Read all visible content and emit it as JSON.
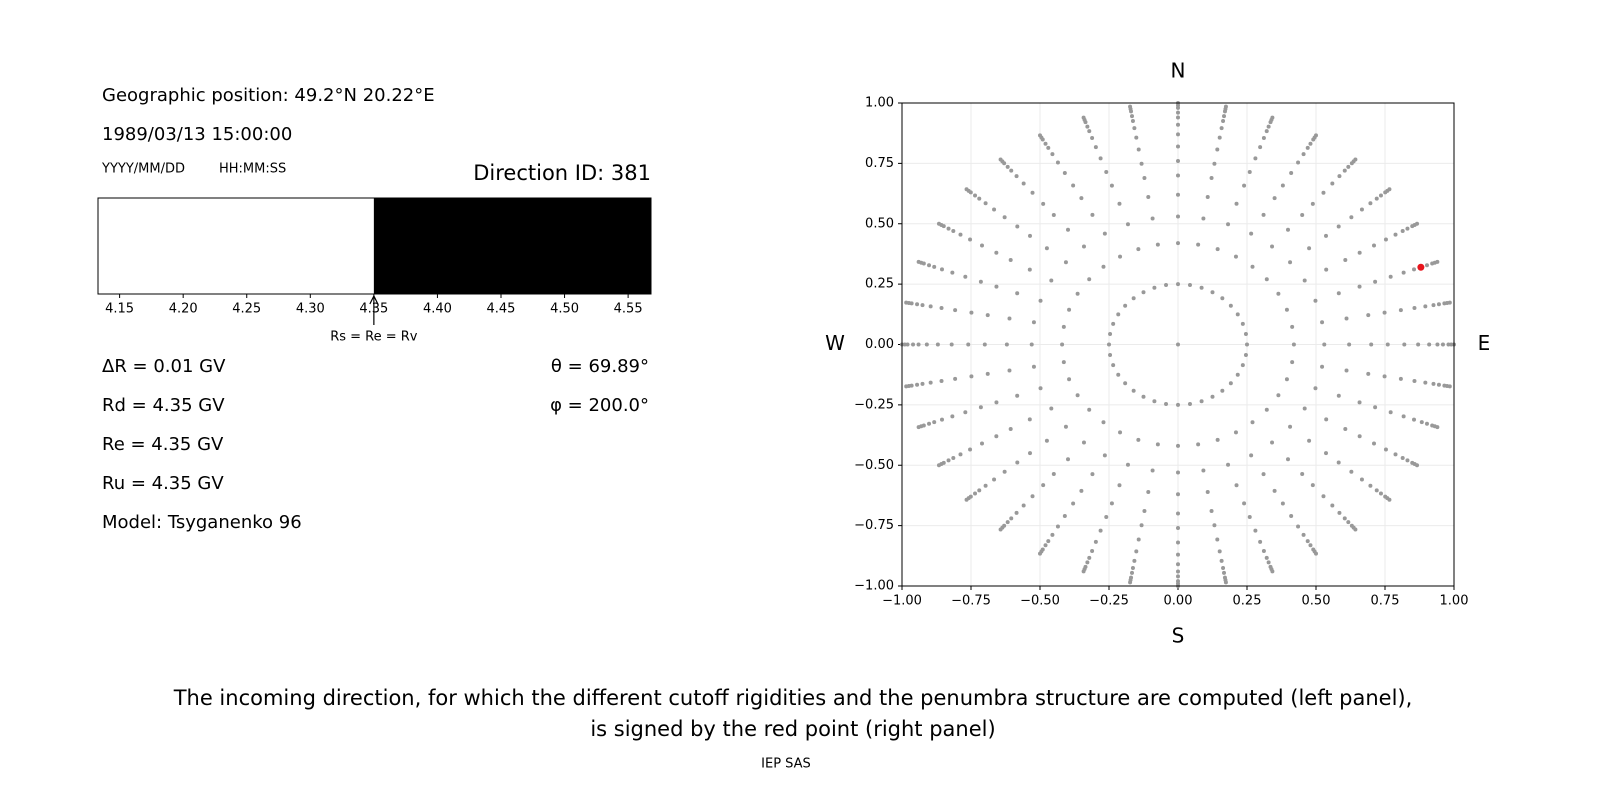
{
  "panel": {
    "position": "Geographic position: 49.2°N 20.22°E",
    "datetime": "1989/03/13 15:00:00",
    "date_format": "YYYY/MM/DD",
    "time_format": "HH:MM:SS",
    "direction_id": "Direction ID: 381",
    "parameters": [
      "ΔR = 0.01 GV",
      "Rd = 4.35 GV",
      "Re = 4.35 GV",
      "Ru = 4.35 GV",
      "Model: Tsyganenko 96"
    ],
    "angles": [
      "θ = 69.89°",
      "φ = 200.0°"
    ]
  },
  "chart_data": [
    {
      "type": "penumbra",
      "xlim": [
        4.133,
        4.568
      ],
      "xticks": [
        4.15,
        {
          "value": 4.2,
          "label": "4.20"
        },
        4.25,
        {
          "value": 4.3,
          "label": "4.30"
        },
        4.35,
        {
          "value": 4.4,
          "label": "4.40"
        },
        4.45,
        {
          "value": 4.5,
          "label": "4.50"
        },
        4.55
      ],
      "segments": [
        {
          "from": 4.133,
          "to": 4.35,
          "color": "#ffffff"
        },
        {
          "from": 4.35,
          "to": 4.568,
          "color": "#000000"
        }
      ],
      "marker": {
        "value": 4.35,
        "label": "Rs = Re = Rv"
      }
    },
    {
      "type": "scatter",
      "xlim": [
        -1,
        1
      ],
      "ylim": [
        -1,
        1
      ],
      "xticks": [
        {
          "value": -1,
          "label": "−1.00"
        },
        {
          "value": -0.75,
          "label": "−0.75"
        },
        {
          "value": -0.5,
          "label": "−0.50"
        },
        {
          "value": -0.25,
          "label": "−0.25"
        },
        {
          "value": 0,
          "label": "0.00"
        },
        {
          "value": 0.25,
          "label": "0.25"
        },
        {
          "value": 0.5,
          "label": "0.50"
        },
        {
          "value": 0.75,
          "label": "0.75"
        },
        {
          "value": 1,
          "label": "1.00"
        }
      ],
      "yticks": [
        {
          "value": -1,
          "label": "−1.00"
        },
        {
          "value": -0.75,
          "label": "−0.75"
        },
        {
          "value": -0.5,
          "label": "−0.50"
        },
        {
          "value": -0.25,
          "label": "−0.25"
        },
        {
          "value": 0,
          "label": "0.00"
        },
        {
          "value": 0.25,
          "label": "0.25"
        },
        {
          "value": 0.5,
          "label": "0.50"
        },
        {
          "value": 0.75,
          "label": "0.75"
        },
        {
          "value": 1,
          "label": "1.00"
        }
      ],
      "grid": true,
      "compass": {
        "north": "N",
        "south": "S",
        "west": "W",
        "east": "E"
      },
      "directions": {
        "color": "#999999",
        "azimuths": [
          0,
          10,
          20,
          30,
          40,
          50,
          60,
          70,
          80,
          90,
          100,
          110,
          120,
          130,
          140,
          150,
          160,
          170,
          180,
          190,
          200,
          210,
          220,
          230,
          240,
          250,
          260,
          270,
          280,
          290,
          300,
          310,
          320,
          330,
          340,
          350
        ],
        "radii": [
          0.25,
          0.42,
          0.53,
          0.62,
          0.7,
          0.76,
          0.82,
          0.87,
          0.91,
          0.94,
          0.96,
          0.98,
          0.99,
          1.0
        ]
      },
      "center": {
        "x": 0,
        "y": 0
      },
      "selected": {
        "x": 0.88,
        "y": 0.32,
        "color": "#e8141c"
      }
    }
  ],
  "caption": [
    "The incoming direction, for which the different cutoff rigidities and the penumbra structure are computed (left panel),",
    "is signed by the red point (right panel)"
  ],
  "credit": "IEP SAS"
}
